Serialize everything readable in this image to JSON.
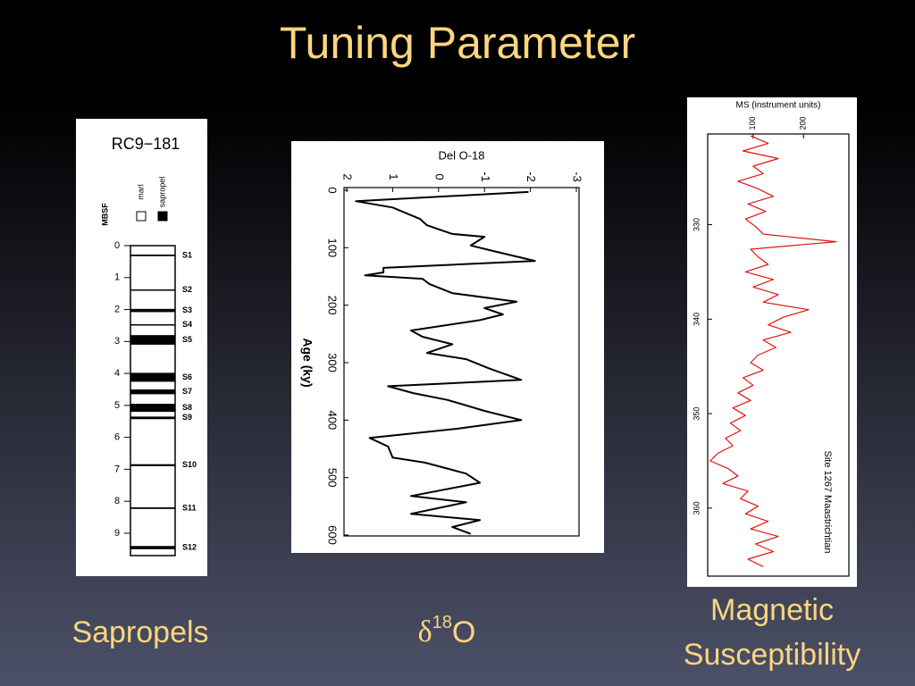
{
  "title": "Tuning Parameter",
  "captions": {
    "sapropels": "Sapropels",
    "d18o": {
      "symbol": "δ",
      "sup": "18",
      "base": "O"
    },
    "ms": [
      "Magnetic",
      "Susceptibility"
    ]
  },
  "chart_data": [
    {
      "type": "core-log",
      "title": "RC9−181",
      "ylabel": "MBSF",
      "legend": [
        {
          "name": "marl",
          "color": "#ffffff"
        },
        {
          "name": "sapropel",
          "color": "#000000"
        }
      ],
      "ylim": [
        0,
        9.7
      ],
      "yticks": [
        0,
        1,
        2,
        3,
        4,
        5,
        6,
        7,
        8,
        9
      ],
      "core_length": 9.7,
      "layers": [
        {
          "name": "S1",
          "depth": 0.28,
          "thickness": 0.05
        },
        {
          "name": "S2",
          "depth": 1.37,
          "thickness": 0.04
        },
        {
          "name": "S3",
          "depth": 1.98,
          "thickness": 0.1
        },
        {
          "name": "S4",
          "depth": 2.46,
          "thickness": 0.04
        },
        {
          "name": "S5",
          "depth": 2.8,
          "thickness": 0.3
        },
        {
          "name": "S6",
          "depth": 3.98,
          "thickness": 0.28
        },
        {
          "name": "S7",
          "depth": 4.5,
          "thickness": 0.15
        },
        {
          "name": "S8",
          "depth": 4.95,
          "thickness": 0.25
        },
        {
          "name": "S9",
          "depth": 5.35,
          "thickness": 0.08
        },
        {
          "name": "S10",
          "depth": 6.84,
          "thickness": 0.06
        },
        {
          "name": "S11",
          "depth": 8.19,
          "thickness": 0.05
        },
        {
          "name": "S12",
          "depth": 9.4,
          "thickness": 0.1
        }
      ]
    },
    {
      "type": "line",
      "orientation": "rotated",
      "title": "Del O-18",
      "xlabel": "Age (ky)",
      "color": "#000000",
      "xlim": [
        0,
        600
      ],
      "xticks": [
        0,
        100,
        200,
        300,
        400,
        500,
        600
      ],
      "ylim": [
        2,
        -3
      ],
      "yticks": [
        2,
        1,
        0,
        -1,
        -2,
        -3
      ],
      "x": [
        3,
        19,
        30,
        50,
        61,
        76,
        81,
        96,
        104,
        123,
        135,
        143,
        148,
        154,
        163,
        179,
        194,
        205,
        216,
        226,
        244,
        255,
        268,
        283,
        294,
        310,
        330,
        341,
        353,
        365,
        384,
        400,
        415,
        431,
        446,
        465,
        474,
        493,
        509,
        532,
        543,
        563,
        574,
        586,
        598
      ],
      "values": [
        -1.96,
        1.8,
        1.0,
        0.4,
        0.25,
        -0.3,
        -1.0,
        -0.7,
        -1.1,
        -2.1,
        1.2,
        1.2,
        1.6,
        0.35,
        0.2,
        -0.3,
        -1.7,
        -1.0,
        -1.4,
        -0.9,
        0.6,
        0.35,
        -0.3,
        0.25,
        -0.6,
        -1.1,
        -1.8,
        1.1,
        0.55,
        -0.2,
        -1.0,
        -1.8,
        -0.4,
        1.5,
        1.1,
        1.0,
        0.3,
        -0.6,
        -0.9,
        0.6,
        -0.6,
        0.6,
        -0.9,
        -0.3,
        -0.7
      ]
    },
    {
      "type": "line",
      "orientation": "rotated",
      "title": "MS (instrument units)",
      "annotation": "Site 1267 Maastrichtian",
      "color": "#e01414",
      "xlim": [
        320.4,
        367.2
      ],
      "xticks": [
        330,
        340,
        350,
        360
      ],
      "ylim": [
        10,
        290
      ],
      "yticks": [
        100,
        200
      ],
      "x": [
        320.6,
        321.4,
        322.2,
        323.0,
        323.8,
        324.6,
        325.4,
        326.2,
        327.0,
        327.8,
        328.6,
        329.4,
        330.2,
        331.0,
        331.8,
        332.6,
        333.4,
        334.2,
        335.0,
        335.8,
        336.6,
        337.4,
        338.2,
        339.0,
        339.8,
        340.6,
        341.4,
        342.2,
        343.0,
        343.8,
        344.6,
        345.4,
        346.2,
        347.0,
        347.8,
        348.6,
        349.4,
        350.2,
        351.0,
        351.8,
        352.6,
        353.4,
        354.2,
        355.0,
        355.8,
        356.6,
        357.4,
        358.2,
        359.0,
        359.8,
        360.6,
        361.4,
        362.2,
        363.0,
        363.8,
        364.6,
        365.4,
        366.2
      ],
      "values": [
        95,
        130,
        80,
        150,
        100,
        120,
        70,
        110,
        140,
        90,
        125,
        85,
        105,
        120,
        265,
        95,
        110,
        130,
        85,
        140,
        100,
        150,
        120,
        210,
        160,
        130,
        175,
        120,
        145,
        110,
        95,
        120,
        80,
        100,
        70,
        95,
        60,
        85,
        55,
        75,
        45,
        60,
        30,
        15,
        50,
        70,
        40,
        90,
        75,
        110,
        85,
        130,
        95,
        150,
        105,
        140,
        90,
        120
      ]
    }
  ]
}
